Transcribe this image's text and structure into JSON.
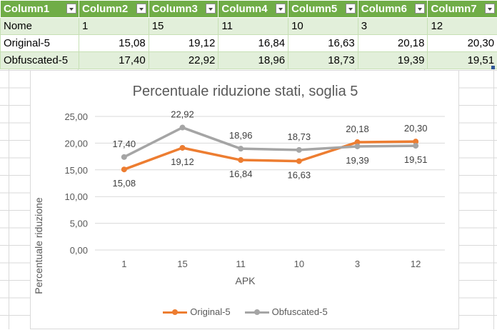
{
  "table": {
    "headers": [
      "Column1",
      "Column2",
      "Column3",
      "Column4",
      "Column5",
      "Column6",
      "Column7"
    ],
    "rows": [
      [
        "Nome",
        "1",
        "15",
        "11",
        "10",
        "3",
        "12"
      ],
      [
        "Original-5",
        "15,08",
        "19,12",
        "16,84",
        "16,63",
        "20,18",
        "20,30"
      ],
      [
        "Obfuscated-5",
        "17,40",
        "22,92",
        "18,96",
        "18,73",
        "19,39",
        "19,51"
      ]
    ]
  },
  "chart_data": {
    "type": "line",
    "title": "Percentuale riduzione stati, soglia 5",
    "xlabel": "APK",
    "ylabel": "Percentuale riduzione",
    "categories": [
      "1",
      "15",
      "11",
      "10",
      "3",
      "12"
    ],
    "ylim": [
      0,
      25
    ],
    "yticks": [
      "0,00",
      "5,00",
      "10,00",
      "15,00",
      "20,00",
      "25,00"
    ],
    "grid": true,
    "legend_position": "bottom",
    "series": [
      {
        "name": "Original-5",
        "color": "#ed7d31",
        "values": [
          15.08,
          19.12,
          16.84,
          16.63,
          20.18,
          20.3
        ],
        "labels": [
          "15,08",
          "19,12",
          "16,84",
          "16,63",
          "20,18",
          "20,30"
        ]
      },
      {
        "name": "Obfuscated-5",
        "color": "#a5a5a5",
        "values": [
          17.4,
          22.92,
          18.96,
          18.73,
          19.39,
          19.51
        ],
        "labels": [
          "17,40",
          "22,92",
          "18,96",
          "18,73",
          "19,39",
          "19,51"
        ]
      }
    ]
  }
}
